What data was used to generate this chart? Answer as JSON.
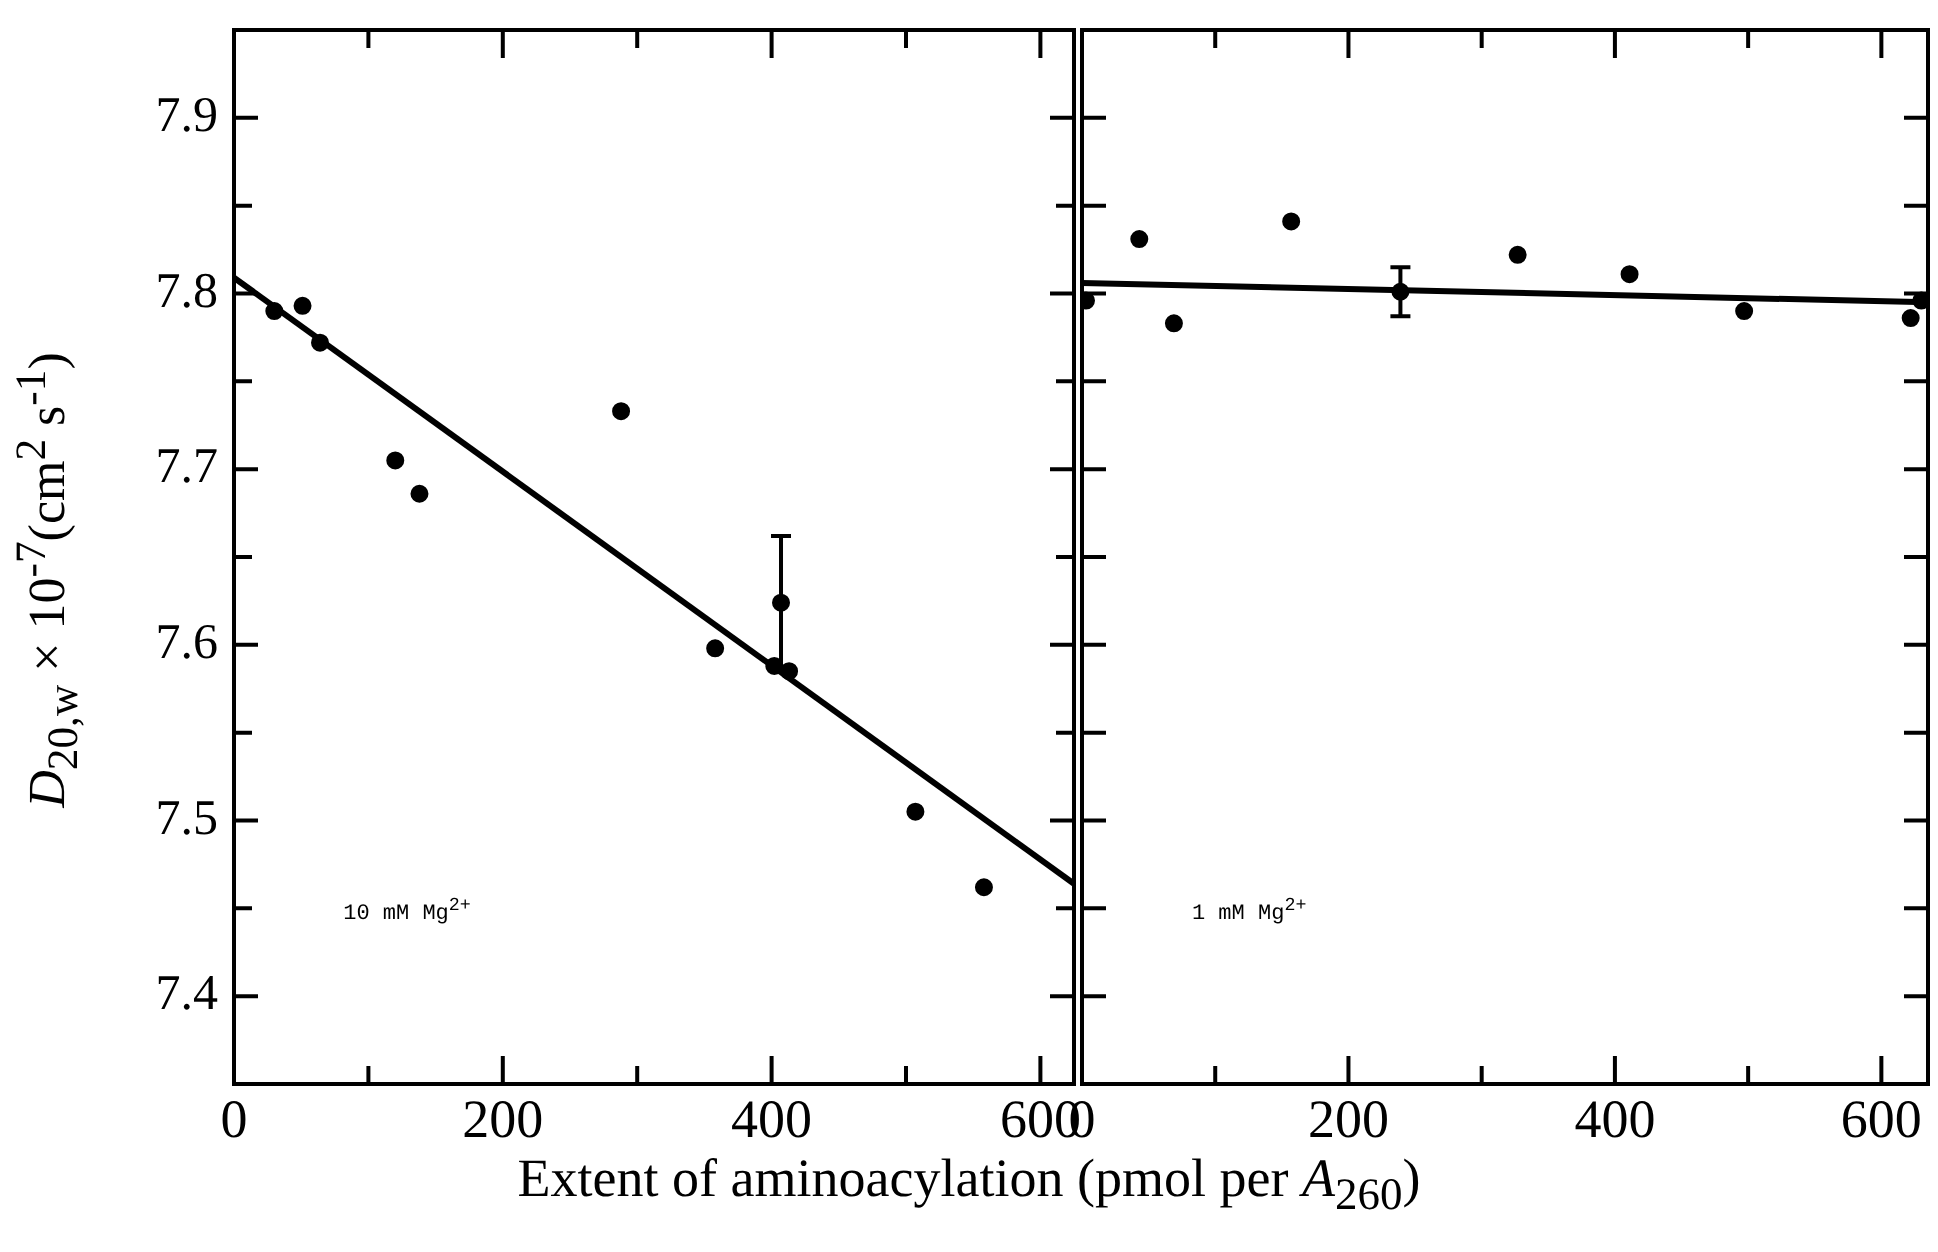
{
  "chart_data": [
    {
      "type": "scatter",
      "ylabel": "D$_{20,w}$ × 10$^{-7}$(cm$^{2}$ s$^{-1}$)",
      "xlabel": "Extent of aminoacylation (pmol per A$_{260}$)",
      "annotations": [
        "10 mM Mg$^{2+}$"
      ],
      "xlim": [
        0,
        625
      ],
      "xticks": [
        0,
        {
          "value": 100,
          "label": null
        },
        200,
        {
          "value": 300,
          "label": null
        },
        400,
        {
          "value": 500,
          "label": null
        },
        600
      ],
      "ylim": [
        7.35,
        7.95
      ],
      "yticks": [
        7.4,
        {
          "value": 7.45,
          "label": null
        },
        7.5,
        {
          "value": 7.55,
          "label": null
        },
        7.6,
        {
          "value": 7.65,
          "label": null
        },
        7.7,
        {
          "value": 7.75,
          "label": null
        },
        7.8,
        {
          "value": 7.85,
          "label": null
        },
        7.9
      ],
      "grid": false,
      "legend": false,
      "line_style": "solid",
      "series": [
        {
          "type": "scatter",
          "marker": "circle",
          "color": "#000000",
          "x": [
            30,
            51,
            64,
            120,
            138,
            288,
            358,
            407,
            402,
            413,
            507,
            558
          ],
          "values": [
            7.79,
            7.793,
            7.772,
            7.705,
            7.686,
            7.733,
            7.598,
            7.624,
            7.588,
            7.585,
            7.505,
            7.462
          ],
          "errors": [
            null,
            null,
            null,
            null,
            null,
            null,
            null,
            0.038,
            null,
            null,
            null,
            null
          ]
        },
        {
          "type": "line",
          "marker": "none",
          "color": "#000000",
          "x": [
            0,
            625
          ],
          "values": [
            7.809,
            7.464
          ]
        }
      ]
    },
    {
      "type": "scatter",
      "annotations": [
        "1 mM Mg$^{2+}$"
      ],
      "tick_labels": "x",
      "xlim": [
        0,
        635
      ],
      "xticks": [
        0,
        {
          "value": 100,
          "label": null
        },
        200,
        {
          "value": 300,
          "label": null
        },
        400,
        {
          "value": 500,
          "label": null
        },
        600
      ],
      "ylim": [
        7.35,
        7.95
      ],
      "yticks": [
        7.4,
        7.45,
        7.5,
        7.55,
        7.6,
        7.65,
        7.7,
        7.75,
        7.8,
        7.85,
        7.9
      ],
      "grid": false,
      "legend": false,
      "line_style": "solid",
      "series": [
        {
          "type": "scatter",
          "marker": "circle",
          "color": "#000000",
          "x": [
            3,
            43,
            69,
            157,
            239,
            327,
            411,
            497,
            622,
            630
          ],
          "values": [
            7.796,
            7.831,
            7.783,
            7.841,
            7.801,
            7.822,
            7.811,
            7.79,
            7.786,
            7.796
          ],
          "errors": [
            null,
            null,
            null,
            null,
            0.014,
            null,
            null,
            null,
            null,
            null
          ]
        },
        {
          "type": "line",
          "marker": "none",
          "color": "#000000",
          "x": [
            0,
            635
          ],
          "values": [
            7.806,
            7.795
          ]
        }
      ]
    }
  ]
}
